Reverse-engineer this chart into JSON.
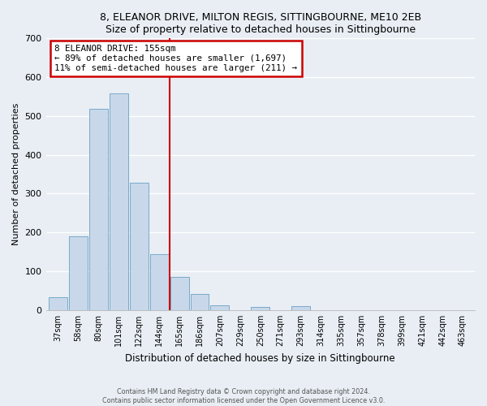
{
  "title": "8, ELEANOR DRIVE, MILTON REGIS, SITTINGBOURNE, ME10 2EB",
  "subtitle": "Size of property relative to detached houses in Sittingbourne",
  "xlabel": "Distribution of detached houses by size in Sittingbourne",
  "ylabel": "Number of detached properties",
  "bin_labels": [
    "37sqm",
    "58sqm",
    "80sqm",
    "101sqm",
    "122sqm",
    "144sqm",
    "165sqm",
    "186sqm",
    "207sqm",
    "229sqm",
    "250sqm",
    "271sqm",
    "293sqm",
    "314sqm",
    "335sqm",
    "357sqm",
    "378sqm",
    "399sqm",
    "421sqm",
    "442sqm",
    "463sqm"
  ],
  "bar_heights": [
    33,
    190,
    518,
    557,
    328,
    144,
    86,
    41,
    13,
    0,
    9,
    0,
    11,
    0,
    0,
    0,
    0,
    0,
    0,
    0,
    0
  ],
  "bar_color": "#c8d8ea",
  "bar_edge_color": "#7aaac8",
  "ylim": [
    0,
    700
  ],
  "yticks": [
    0,
    100,
    200,
    300,
    400,
    500,
    600,
    700
  ],
  "vline_color": "#cc0000",
  "annotation_title": "8 ELEANOR DRIVE: 155sqm",
  "annotation_line1": "← 89% of detached houses are smaller (1,697)",
  "annotation_line2": "11% of semi-detached houses are larger (211) →",
  "annotation_box_color": "#cc0000",
  "footer_line1": "Contains HM Land Registry data © Crown copyright and database right 2024.",
  "footer_line2": "Contains public sector information licensed under the Open Government Licence v3.0.",
  "background_color": "#e8eef4",
  "plot_background": "#e8eef4"
}
